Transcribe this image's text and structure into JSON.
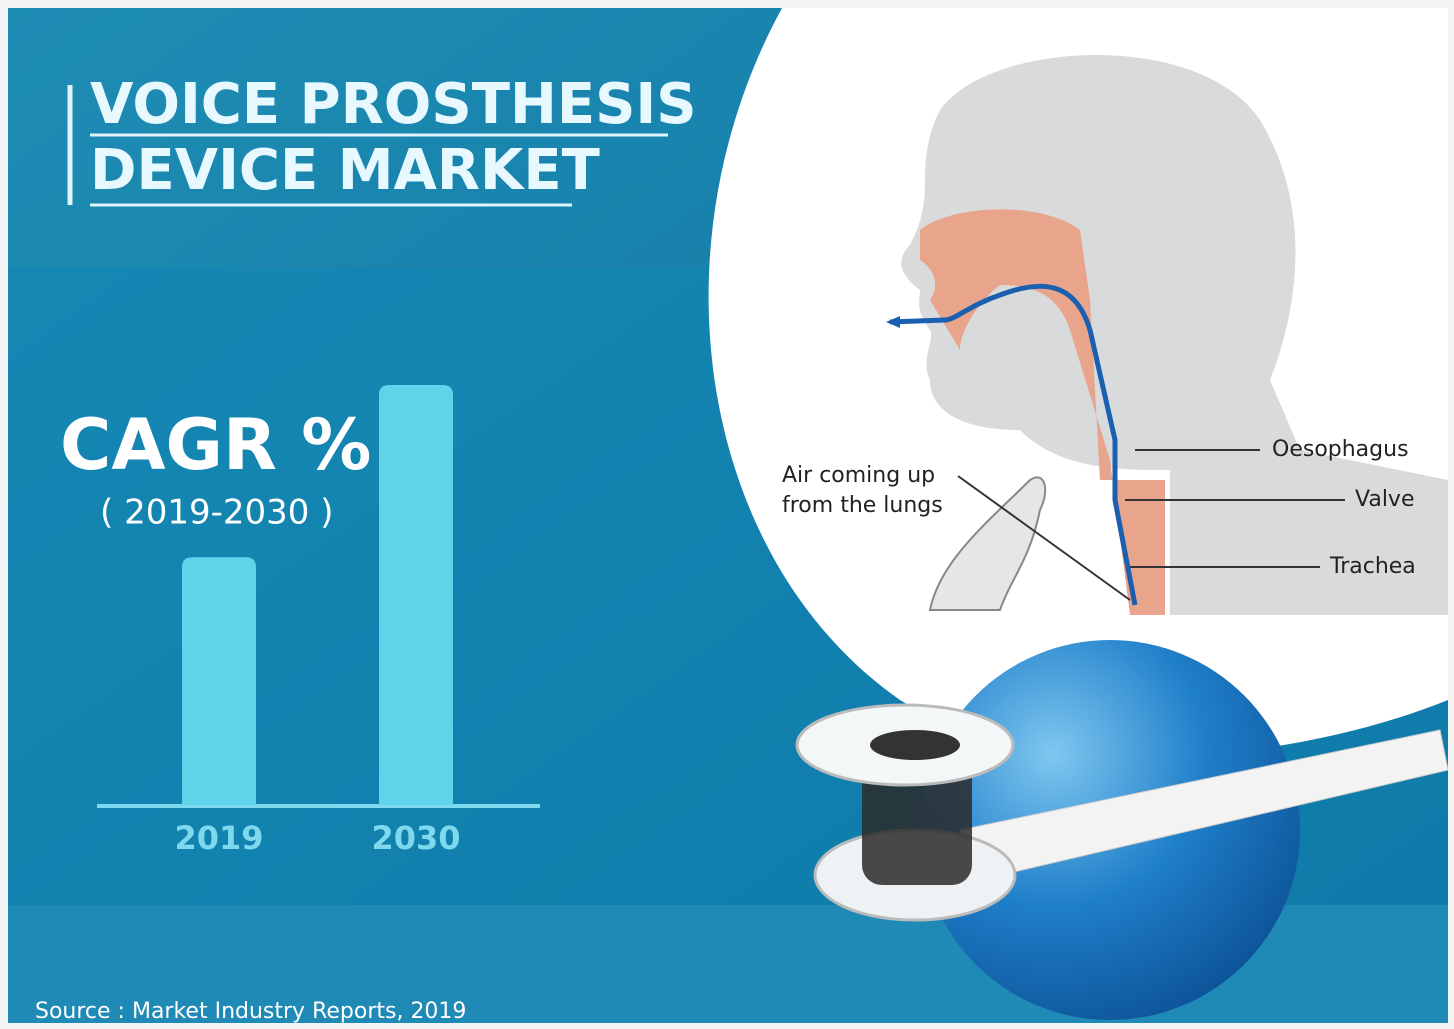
{
  "header": {
    "title_lines": [
      "VOICE PROSTHESIS",
      "DEVICE MARKET"
    ]
  },
  "chart_data": {
    "type": "bar",
    "title": "CAGR %",
    "subtitle": "( 2019-2030 )",
    "categories": [
      "2019",
      "2030"
    ],
    "values": [
      59,
      100
    ],
    "ylim": [
      0,
      100
    ],
    "color": "#5fd3ea"
  },
  "diagram": {
    "labels": [
      "Air coming up",
      "from the lungs",
      "Oesophagus",
      "Valve",
      "Trachea"
    ]
  },
  "source": "Source : Market Industry Reports, 2019"
}
